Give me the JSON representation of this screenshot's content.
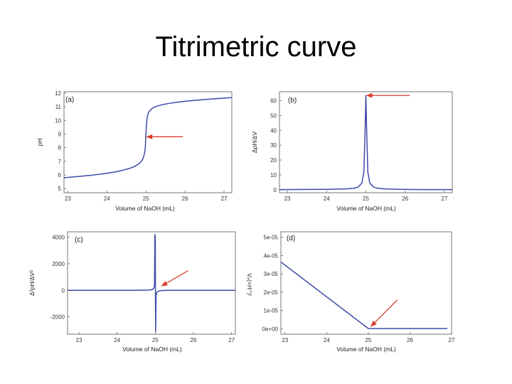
{
  "title": "Titrimetric curve",
  "colors": {
    "curve": "#3d4aa8",
    "arrow": "#dc3c2e",
    "frame": "#555555"
  },
  "chart_data": [
    {
      "id": "a",
      "panel_label": "(a)",
      "type": "line",
      "xlabel": "Volume of NaOH (mL)",
      "ylabel": "pH",
      "xlim": [
        22.9,
        27.2
      ],
      "ylim": [
        4.7,
        12.1
      ],
      "xticks": [
        23,
        24,
        25,
        26,
        27
      ],
      "yticks": [
        5,
        6,
        7,
        8,
        9,
        10,
        11,
        12
      ],
      "series": [
        {
          "x": [
            22.9,
            23.0,
            23.3,
            23.6,
            23.9,
            24.2,
            24.4,
            24.6,
            24.7,
            24.8,
            24.85,
            24.9,
            24.93,
            24.96,
            24.98,
            24.99,
            25.0,
            25.01,
            25.02,
            25.04,
            25.07,
            25.1,
            25.15,
            25.2,
            25.3,
            25.4,
            25.6,
            25.8,
            26.0,
            26.3,
            26.6,
            26.9,
            27.2
          ],
          "y": [
            5.8,
            5.82,
            5.9,
            5.98,
            6.08,
            6.22,
            6.34,
            6.5,
            6.62,
            6.78,
            6.9,
            7.07,
            7.25,
            7.55,
            7.9,
            8.4,
            9.0,
            9.55,
            9.95,
            10.35,
            10.6,
            10.72,
            10.86,
            10.95,
            11.06,
            11.14,
            11.25,
            11.33,
            11.4,
            11.48,
            11.55,
            11.61,
            11.67
          ]
        }
      ],
      "annotations": [
        {
          "type": "arrow",
          "x": 25.0,
          "y": 8.8
        }
      ]
    },
    {
      "id": "b",
      "panel_label": "(b)",
      "type": "line",
      "xlabel": "Volume of NaOH (mL)",
      "ylabel": "ΔpH/ΔV",
      "xlim": [
        22.8,
        27.2
      ],
      "ylim": [
        -2,
        66
      ],
      "xticks": [
        23,
        24,
        25,
        26,
        27
      ],
      "yticks": [
        0,
        10,
        20,
        30,
        40,
        50,
        60
      ],
      "series": [
        {
          "x": [
            22.8,
            23.5,
            24.0,
            24.5,
            24.7,
            24.8,
            24.9,
            24.95,
            24.98,
            25.0,
            25.02,
            25.05,
            25.1,
            25.2,
            25.3,
            25.5,
            26.0,
            26.5,
            27.2
          ],
          "y": [
            0.1,
            0.2,
            0.3,
            0.6,
            1.0,
            1.8,
            4.5,
            12,
            40,
            63.5,
            40,
            12,
            4.5,
            1.8,
            1.0,
            0.5,
            0.2,
            0.1,
            0.1
          ]
        }
      ],
      "annotations": [
        {
          "type": "arrow",
          "x": 25.0,
          "y": 63.5
        }
      ]
    },
    {
      "id": "c",
      "panel_label": "(c)",
      "type": "line",
      "xlabel": "Volume of NaOH (mL)",
      "ylabel": "Δ²pH/ΔV²",
      "xlim": [
        22.7,
        27.1
      ],
      "ylim": [
        -3300,
        4400
      ],
      "xticks": [
        23,
        24,
        25,
        26,
        27
      ],
      "yticks": [
        -2000,
        0,
        2000,
        4000
      ],
      "series": [
        {
          "x": [
            22.7,
            24.5,
            24.85,
            24.92,
            24.96,
            24.98,
            24.99,
            25.0,
            25.005,
            25.01,
            25.02,
            25.04,
            25.08,
            25.15,
            25.3,
            27.1
          ],
          "y": [
            0,
            0,
            20,
            60,
            150,
            400,
            4200,
            4000,
            -1000,
            -3100,
            -400,
            -150,
            -60,
            -20,
            0,
            0
          ]
        }
      ],
      "annotations": [
        {
          "type": "arrow",
          "x": 25.15,
          "y": 300
        }
      ]
    },
    {
      "id": "d",
      "panel_label": "(d)",
      "type": "line",
      "xlabel": "Volume of NaOH (mL)",
      "ylabel": "Vₑ(×H⁺)ᴵ",
      "xlim": [
        22.9,
        27.0
      ],
      "ylim": [
        -3e-06,
        5.3e-05
      ],
      "xticks": [
        23,
        24,
        25,
        26,
        27
      ],
      "yticks": [
        0,
        1e-05,
        2e-05,
        3e-05,
        4e-05,
        5e-05
      ],
      "ytick_labels": [
        "0e+00",
        "1e-05",
        "2e-05",
        "3e-05",
        "4e-05",
        "5e-05"
      ],
      "series": [
        {
          "x": [
            22.9,
            25.0,
            26.9
          ],
          "y": [
            3.65e-05,
            1e-07,
            1e-07
          ]
        }
      ],
      "annotations": [
        {
          "type": "arrow",
          "x": 25.05,
          "y": 1e-06
        }
      ]
    }
  ]
}
